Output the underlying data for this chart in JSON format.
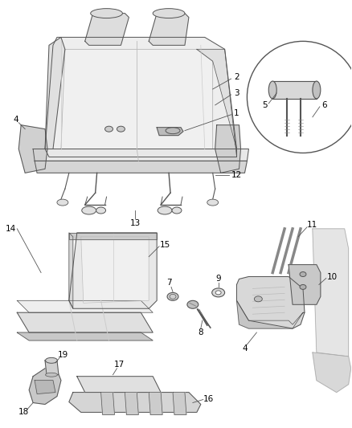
{
  "background_color": "#ffffff",
  "line_color": "#888888",
  "dark_line": "#555555",
  "label_color": "#000000",
  "figsize": [
    4.38,
    5.33
  ],
  "dpi": 100,
  "fill_light": "#e8e8e8",
  "fill_mid": "#d8d8d8",
  "fill_dark": "#c8c8c8",
  "fill_white": "#f5f5f5"
}
